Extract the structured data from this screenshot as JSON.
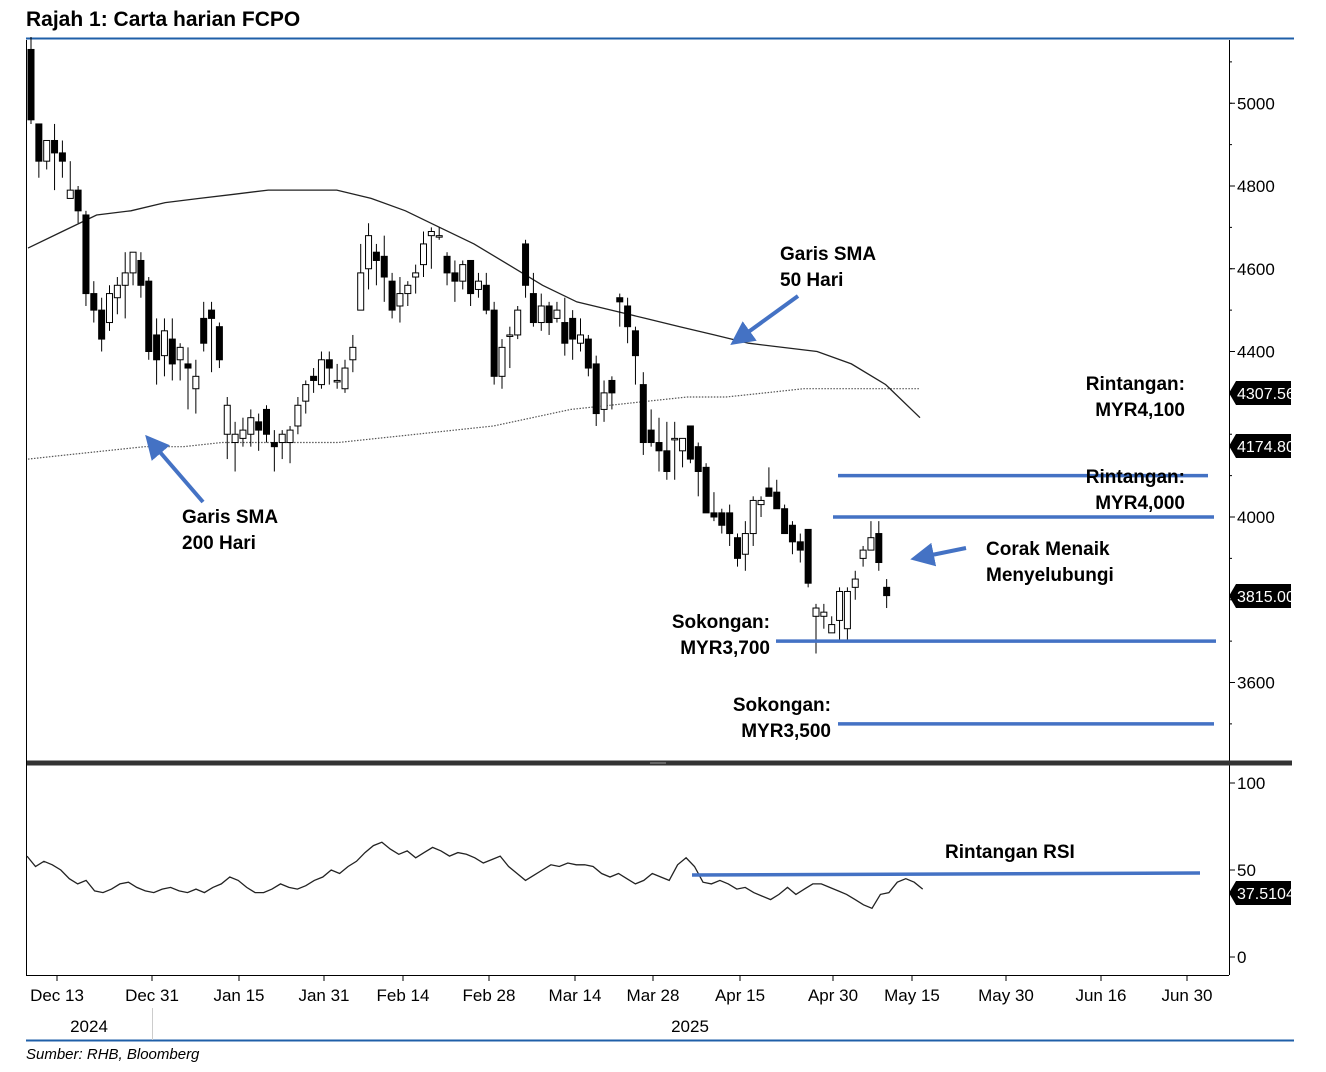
{
  "title": "Rajah 1: Carta harian FCPO",
  "source": "Sumber: RHB, Bloomberg",
  "colors": {
    "rule": "#1f5fa8",
    "level": "#4472c4",
    "candle": "#000000",
    "sma": "#222222"
  },
  "chart_data": [
    {
      "type": "candlestick",
      "title": "",
      "y_ticks": [
        3600,
        4000,
        4400,
        4600,
        4800,
        5000
      ],
      "ylim": [
        3420,
        5160
      ],
      "x_ticks": [
        "Dec 13",
        "Dec 31",
        "Jan 15",
        "Jan 31",
        "Feb 14",
        "Feb 28",
        "Mar 14",
        "Mar 28",
        "Apr 15",
        "Apr 30",
        "May 15",
        "May 30",
        "Jun 16",
        "Jun 30"
      ],
      "year_labels": [
        "2024",
        "2025"
      ],
      "price_labels": [
        "4307.56",
        "4174.80",
        "3815.00"
      ],
      "candles_ohlc": [
        [
          5130,
          5160,
          4950,
          4960
        ],
        [
          4950,
          4950,
          4820,
          4860
        ],
        [
          4860,
          4910,
          4840,
          4910
        ],
        [
          4910,
          4950,
          4790,
          4880
        ],
        [
          4880,
          4910,
          4820,
          4860
        ],
        [
          4770,
          4860,
          4780,
          4790
        ],
        [
          4790,
          4800,
          4710,
          4740
        ],
        [
          4730,
          4740,
          4510,
          4540
        ],
        [
          4540,
          4570,
          4470,
          4500
        ],
        [
          4500,
          4530,
          4400,
          4430
        ],
        [
          4470,
          4560,
          4450,
          4540
        ],
        [
          4530,
          4580,
          4490,
          4560
        ],
        [
          4560,
          4640,
          4480,
          4590
        ],
        [
          4590,
          4640,
          4560,
          4640
        ],
        [
          4620,
          4640,
          4530,
          4560
        ],
        [
          4570,
          4580,
          4380,
          4400
        ],
        [
          4440,
          4480,
          4320,
          4380
        ],
        [
          4390,
          4480,
          4340,
          4450
        ],
        [
          4430,
          4480,
          4330,
          4370
        ],
        [
          4380,
          4420,
          4330,
          4410
        ],
        [
          4370,
          4410,
          4260,
          4360
        ],
        [
          4310,
          4380,
          4250,
          4340
        ],
        [
          4480,
          4520,
          4400,
          4420
        ],
        [
          4500,
          4520,
          4350,
          4480
        ],
        [
          4460,
          4470,
          4360,
          4380
        ],
        [
          4200,
          4290,
          4140,
          4270
        ],
        [
          4180,
          4230,
          4110,
          4200
        ],
        [
          4190,
          4240,
          4170,
          4210
        ],
        [
          4200,
          4260,
          4170,
          4240
        ],
        [
          4230,
          4250,
          4160,
          4210
        ],
        [
          4260,
          4270,
          4180,
          4200
        ],
        [
          4180,
          4210,
          4110,
          4170
        ],
        [
          4180,
          4210,
          4140,
          4200
        ],
        [
          4180,
          4220,
          4130,
          4210
        ],
        [
          4220,
          4290,
          4200,
          4270
        ],
        [
          4280,
          4330,
          4250,
          4320
        ],
        [
          4340,
          4360,
          4300,
          4330
        ],
        [
          4320,
          4400,
          4310,
          4380
        ],
        [
          4380,
          4400,
          4320,
          4360
        ],
        [
          4330,
          4370,
          4310,
          4330
        ],
        [
          4310,
          4380,
          4300,
          4360
        ],
        [
          4380,
          4440,
          4350,
          4410
        ],
        [
          4500,
          4660,
          4500,
          4590
        ],
        [
          4600,
          4710,
          4550,
          4680
        ],
        [
          4640,
          4660,
          4560,
          4620
        ],
        [
          4630,
          4680,
          4520,
          4580
        ],
        [
          4570,
          4590,
          4480,
          4500
        ],
        [
          4510,
          4580,
          4470,
          4540
        ],
        [
          4540,
          4570,
          4510,
          4560
        ],
        [
          4580,
          4610,
          4540,
          4590
        ],
        [
          4610,
          4690,
          4580,
          4660
        ],
        [
          4680,
          4700,
          4600,
          4690
        ],
        [
          4680,
          4700,
          4670,
          4680
        ],
        [
          4630,
          4640,
          4560,
          4590
        ],
        [
          4590,
          4620,
          4520,
          4570
        ],
        [
          4570,
          4620,
          4550,
          4610
        ],
        [
          4620,
          4620,
          4510,
          4540
        ],
        [
          4550,
          4590,
          4530,
          4570
        ],
        [
          4560,
          4590,
          4490,
          4500
        ],
        [
          4500,
          4520,
          4320,
          4340
        ],
        [
          4340,
          4430,
          4310,
          4410
        ],
        [
          4440,
          4460,
          4360,
          4440
        ],
        [
          4440,
          4510,
          4430,
          4500
        ],
        [
          4660,
          4670,
          4530,
          4560
        ],
        [
          4540,
          4590,
          4460,
          4470
        ],
        [
          4470,
          4540,
          4450,
          4510
        ],
        [
          4510,
          4520,
          4440,
          4470
        ],
        [
          4480,
          4520,
          4470,
          4500
        ],
        [
          4470,
          4530,
          4390,
          4420
        ],
        [
          4480,
          4500,
          4380,
          4430
        ],
        [
          4420,
          4480,
          4400,
          4440
        ],
        [
          4430,
          4440,
          4340,
          4360
        ],
        [
          4370,
          4390,
          4220,
          4250
        ],
        [
          4260,
          4330,
          4230,
          4300
        ],
        [
          4330,
          4340,
          4260,
          4300
        ],
        [
          4530,
          4540,
          4460,
          4520
        ],
        [
          4510,
          4530,
          4420,
          4460
        ],
        [
          4450,
          4460,
          4320,
          4390
        ],
        [
          4320,
          4350,
          4150,
          4180
        ],
        [
          4210,
          4260,
          4170,
          4180
        ],
        [
          4180,
          4240,
          4110,
          4160
        ],
        [
          4160,
          4230,
          4090,
          4110
        ],
        [
          4190,
          4230,
          4090,
          4190
        ],
        [
          4160,
          4190,
          4120,
          4190
        ],
        [
          4220,
          4220,
          4130,
          4140
        ],
        [
          4170,
          4180,
          4050,
          4110
        ],
        [
          4120,
          4130,
          4010,
          4010
        ],
        [
          4010,
          4060,
          3990,
          4000
        ],
        [
          4010,
          4020,
          3960,
          3980
        ],
        [
          4010,
          4030,
          3930,
          3960
        ],
        [
          3950,
          3960,
          3880,
          3900
        ],
        [
          3910,
          3990,
          3870,
          3960
        ],
        [
          3960,
          4050,
          3930,
          4040
        ],
        [
          4030,
          4050,
          4000,
          4040
        ],
        [
          4070,
          4120,
          4050,
          4050
        ],
        [
          4060,
          4090,
          4020,
          4020
        ],
        [
          4020,
          4030,
          3960,
          3960
        ],
        [
          3980,
          3990,
          3910,
          3940
        ],
        [
          3940,
          3960,
          3890,
          3920
        ],
        [
          3970,
          3970,
          3830,
          3840
        ],
        [
          3760,
          3790,
          3670,
          3780
        ],
        [
          3760,
          3790,
          3730,
          3770
        ],
        [
          3720,
          3760,
          3720,
          3740
        ],
        [
          3750,
          3830,
          3700,
          3820
        ],
        [
          3730,
          3830,
          3700,
          3820
        ],
        [
          3830,
          3870,
          3800,
          3850
        ],
        [
          3900,
          3930,
          3880,
          3920
        ],
        [
          3920,
          3990,
          3920,
          3950
        ],
        [
          3960,
          3990,
          3870,
          3890
        ],
        [
          3830,
          3850,
          3780,
          3810
        ]
      ],
      "sma50": [
        4650,
        4690,
        4730,
        4740,
        4760,
        4770,
        4780,
        4790,
        4790,
        4790,
        4770,
        4740,
        4700,
        4660,
        4610,
        4560,
        4520,
        4500,
        4480,
        4460,
        4440,
        4420,
        4410,
        4400,
        4370,
        4320,
        4240
      ],
      "sma200": [
        4140,
        4150,
        4160,
        4170,
        4170,
        4180,
        4180,
        4180,
        4180,
        4190,
        4200,
        4210,
        4220,
        4240,
        4260,
        4270,
        4280,
        4290,
        4290,
        4300,
        4310,
        4310,
        4310,
        4310
      ],
      "annotations": [
        {
          "label_lines": [
            "Garis SMA",
            "50 Hari"
          ]
        },
        {
          "label_lines": [
            "Garis SMA",
            "200 Hari"
          ]
        },
        {
          "label_lines": [
            "Rintangan:",
            "MYR4,100"
          ],
          "value": 4100
        },
        {
          "label_lines": [
            "Rintangan:",
            "MYR4,000"
          ],
          "value": 4000
        },
        {
          "label_lines": [
            "Corak Menaik",
            "Menyelubungi"
          ]
        },
        {
          "label_lines": [
            "Sokongan:",
            "MYR3,700"
          ],
          "value": 3700
        },
        {
          "label_lines": [
            "Sokongan:",
            "MYR3,500"
          ],
          "value": 3500
        }
      ]
    },
    {
      "type": "line",
      "title": "",
      "y_ticks": [
        0,
        50,
        100
      ],
      "ylim": [
        -10,
        110
      ],
      "price_labels": [
        "37.5104"
      ],
      "rsi": [
        58,
        52,
        55,
        53,
        50,
        45,
        42,
        44,
        38,
        37,
        39,
        42,
        43,
        40,
        38,
        37,
        39,
        40,
        38,
        37,
        39,
        37,
        40,
        42,
        46,
        44,
        40,
        37,
        37,
        39,
        42,
        40,
        39,
        41,
        44,
        46,
        50,
        48,
        52,
        55,
        60,
        64,
        66,
        62,
        59,
        61,
        57,
        60,
        63,
        61,
        58,
        60,
        59,
        57,
        54,
        56,
        58,
        52,
        48,
        44,
        47,
        50,
        53,
        52,
        54,
        53,
        53,
        52,
        48,
        46,
        48,
        45,
        42,
        44,
        48,
        46,
        44,
        53,
        57,
        52,
        43,
        42,
        44,
        42,
        39,
        40,
        37,
        35,
        33,
        36,
        40,
        36,
        39,
        42,
        42,
        40,
        38,
        36,
        33,
        30,
        28,
        36,
        37,
        43,
        45,
        43,
        39
      ],
      "annotations": [
        {
          "label_lines": [
            "Rintangan RSI"
          ],
          "value": 48
        }
      ]
    }
  ]
}
